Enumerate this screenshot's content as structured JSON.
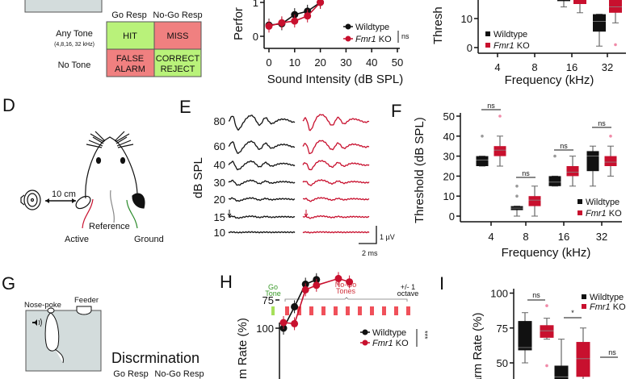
{
  "colors": {
    "wildtype": "#111111",
    "fmr1_ko": "#c8102e",
    "ko_points": "#f08aa8",
    "hit_green": "#b9f27a",
    "miss_red": "#f08080",
    "box_grey": "#d3dcdc",
    "go_tone": "#a6e05a",
    "nogo_tone": "#f0505a"
  },
  "panelA": {
    "col_headers": [
      "Go Resp",
      "No-Go Resp"
    ],
    "row_labels": [
      "Any Tone",
      "No Tone"
    ],
    "row_sublabel": "(4,8,16, 32 kHz)",
    "cells": [
      [
        "HIT",
        "MISS"
      ],
      [
        "FALSE",
        "ALARM",
        "CORRECT",
        "REJECT"
      ]
    ]
  },
  "panelB": {
    "ylabel": "Perfor",
    "xlabel": "Sound Intensity (dB SPL)",
    "legend": {
      "wt": "Wildtype",
      "ko_gene": "Fmr1",
      "ko_suffix": " KO",
      "sig": "ns"
    }
  },
  "panelC": {
    "ylabel": "Thresh",
    "xlabel": "Frequency (kHz)",
    "legend": {
      "wt": "Wildtype",
      "ko_gene": "Fmr1",
      "ko_suffix": " KO"
    }
  },
  "panelD": {
    "label": "D",
    "distance": "10 cm",
    "electrodes": {
      "active": "Active",
      "reference": "Reference",
      "ground": "Ground"
    }
  },
  "panelE": {
    "label": "E",
    "ylabel": "dB SPL",
    "levels": [
      "80",
      "60",
      "40",
      "30",
      "20",
      "15",
      "10"
    ],
    "scale_v": "1 µV",
    "scale_t": "2 ms"
  },
  "panelF": {
    "label": "F",
    "ylabel": "Threshold (dB SPL)",
    "xlabel": "Frequency (kHz)",
    "legend": {
      "wt": "Wildtype",
      "ko_gene": "Fmr1",
      "ko_suffix": " KO"
    }
  },
  "panelG": {
    "label": "G",
    "nose_poke": "Nose-poke",
    "feeder": "Feeder",
    "title": "Discrmination",
    "col_headers": [
      "Go Resp",
      "No-Go Resp"
    ]
  },
  "panelH": {
    "label": "H",
    "go_tone": [
      "Go",
      "Tone"
    ],
    "nogo_tones": [
      "No-Go",
      "Tones"
    ],
    "octave": [
      "+/- 1",
      "octave"
    ],
    "ylabel": "m Rate (%)",
    "legend": {
      "wt": "Wildtype",
      "ko_gene": "Fmr1",
      "ko_suffix": " KO",
      "sig": "***"
    }
  },
  "panelI": {
    "label": "I",
    "ylabel": "larm Rate (%)",
    "legend": {
      "wt": "Wildtype",
      "ko_gene": "Fmr1",
      "ko_suffix": " KO"
    }
  },
  "chart_data": [
    {
      "id": "B",
      "type": "line",
      "xlabel": "Sound Intensity (dB SPL)",
      "ylabel": "Perfor",
      "xlim": [
        0,
        50
      ],
      "xticks": [
        0,
        10,
        20,
        30,
        40,
        50
      ],
      "yticks": [
        0,
        1
      ],
      "x": [
        0,
        5,
        10,
        15,
        20
      ],
      "series": [
        {
          "name": "Wildtype",
          "values": [
            0.33,
            0.37,
            0.64,
            0.74,
            1.0
          ]
        },
        {
          "name": "Fmr1 KO",
          "values": [
            0.3,
            0.4,
            0.45,
            0.6,
            1.0
          ]
        }
      ],
      "annotation": "ns",
      "legend": "right"
    },
    {
      "id": "C",
      "type": "box",
      "xlabel": "Frequency (kHz)",
      "ylabel": "Thresh",
      "categories": [
        "4",
        "8",
        "16",
        "32"
      ],
      "yticks": [
        0,
        10
      ],
      "series": [
        {
          "name": "Wildtype",
          "boxes": {
            "16": [
              14,
              16,
              18,
              22,
              25
            ],
            "32": [
              0.5,
              5.5,
              9,
              11.5,
              11.5
            ]
          }
        },
        {
          "name": "Fmr1 KO",
          "boxes": {
            "16": [
              12,
              15,
              17,
              20,
              22
            ],
            "32": [
              8.5,
              12,
              14,
              20,
              22
            ]
          },
          "outliers": {
            "32": [
              1
            ]
          }
        }
      ],
      "legend": "bottom-left"
    },
    {
      "id": "F",
      "type": "box",
      "xlabel": "Frequency (kHz)",
      "ylabel": "Threshold (dB SPL)",
      "categories": [
        "4",
        "8",
        "16",
        "32"
      ],
      "ylim": [
        0,
        50
      ],
      "yticks": [
        0,
        10,
        20,
        30,
        40,
        50
      ],
      "series": [
        {
          "name": "Wildtype",
          "boxes": {
            "4": [
              25,
              25,
              28,
              30,
              30
            ],
            "8": [
              0,
              3,
              4,
              5,
              5
            ],
            "16": [
              15,
              15,
              17,
              20,
              20
            ],
            "32": [
              15,
              22.5,
              30,
              32.5,
              35
            ]
          },
          "outliers": {
            "4": [
              40
            ],
            "8": [
              10,
              15
            ],
            "16": [
              30
            ]
          }
        },
        {
          "name": "Fmr1 KO",
          "boxes": {
            "4": [
              25,
              30,
              33,
              35,
              40
            ],
            "8": [
              0,
              5,
              8,
              10,
              15
            ],
            "16": [
              15,
              20,
              22,
              25,
              30
            ],
            "32": [
              20,
              25,
              27,
              30,
              35
            ]
          },
          "outliers": {
            "4": [
              50
            ],
            "32": [
              40
            ]
          }
        }
      ],
      "significance": [
        "ns",
        "ns",
        "ns",
        "ns"
      ],
      "legend": "bottom-right"
    },
    {
      "id": "H",
      "type": "line",
      "ylabel": "m Rate (%)",
      "yticks": [
        75,
        100
      ],
      "series": [
        {
          "name": "Wildtype",
          "values": [
            100,
            81,
            61,
            57
          ]
        },
        {
          "name": "Fmr1 KO",
          "values": [
            95,
            96,
            66,
            62,
            null,
            56,
            59
          ]
        }
      ],
      "annotation": "***",
      "legend": "top-right"
    },
    {
      "id": "I",
      "type": "box",
      "ylabel": "larm Rate (%)",
      "yticks": [
        50,
        75,
        100
      ],
      "series": [
        {
          "name": "Wildtype",
          "boxes": [
            [
              50,
              59,
              61,
              80,
              86
            ],
            [
              30,
              35,
              40,
              48,
              67
            ]
          ]
        },
        {
          "name": "Fmr1 KO",
          "boxes": [
            [
              67,
              68,
              73,
              77,
              82
            ],
            [
              38,
              40,
              53,
              65,
              75
            ]
          ],
          "outliers": [
            [
              91,
              48
            ],
            [],
            [
              50
            ]
          ]
        }
      ],
      "significance": [
        "ns",
        "*",
        "ns"
      ],
      "legend": "top-right"
    }
  ]
}
